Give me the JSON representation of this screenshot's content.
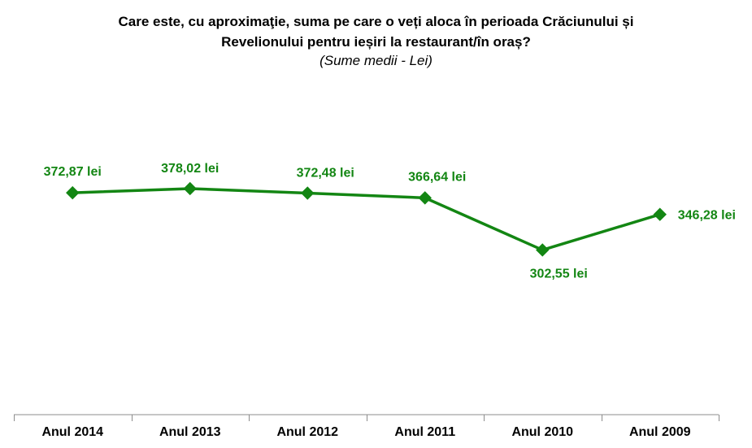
{
  "title": {
    "line1": "Care este, cu aproximaţie, suma pe care o veți aloca în perioada Crăciunului și",
    "line2": "Revelionului pentru ieșiri la restaurant/în oraș?",
    "subtitle": "(Sume medii - Lei)"
  },
  "colors": {
    "series": "#138613",
    "axis": "#8c8c8c"
  },
  "chart_data": {
    "type": "line",
    "title": "Care este, cu aproximaţie, suma pe care o veți aloca în perioada Crăciunului și Revelionului pentru ieșiri la restaurant/în oraș?",
    "subtitle": "(Sume medii - Lei)",
    "categories": [
      "Anul 2014",
      "Anul 2013",
      "Anul 2012",
      "Anul 2011",
      "Anul 2010",
      "Anul 2009"
    ],
    "values": [
      372.87,
      378.02,
      372.48,
      366.64,
      302.55,
      346.28
    ],
    "data_labels": [
      "372,87 lei",
      "378,02 lei",
      "372,48 lei",
      "366,64 lei",
      "302,55 lei",
      "346,28 lei"
    ],
    "marker": "diamond",
    "ylim": [
      100,
      500
    ],
    "grid": false,
    "legend": "none",
    "xlabel": "",
    "ylabel": ""
  }
}
